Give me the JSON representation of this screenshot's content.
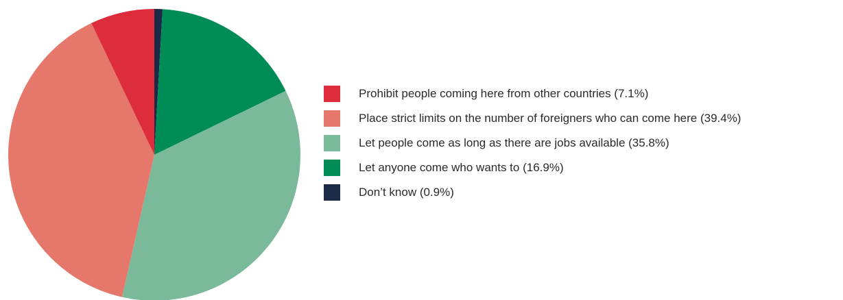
{
  "chart_data": {
    "type": "pie",
    "start_angle_deg": 0,
    "direction": "clockwise",
    "slices": [
      {
        "label": "Don’t know (0.9%)",
        "value": 0.9,
        "color": "#1b2a47"
      },
      {
        "label": "Let anyone come who wants to (16.9%)",
        "value": 16.9,
        "color": "#008c56"
      },
      {
        "label": "Let people come as long as there are jobs available (35.8%)",
        "value": 35.8,
        "color": "#7ab999"
      },
      {
        "label": "Place strict limits on the number of foreigners who can come here (39.4%)",
        "value": 39.4,
        "color": "#e6786b"
      },
      {
        "label": "Prohibit people coming here from other countries (7.1%)",
        "value": 7.1,
        "color": "#dd2c3c"
      }
    ],
    "legend": {
      "placement": "right",
      "order": [
        4,
        3,
        2,
        1,
        0
      ]
    }
  }
}
